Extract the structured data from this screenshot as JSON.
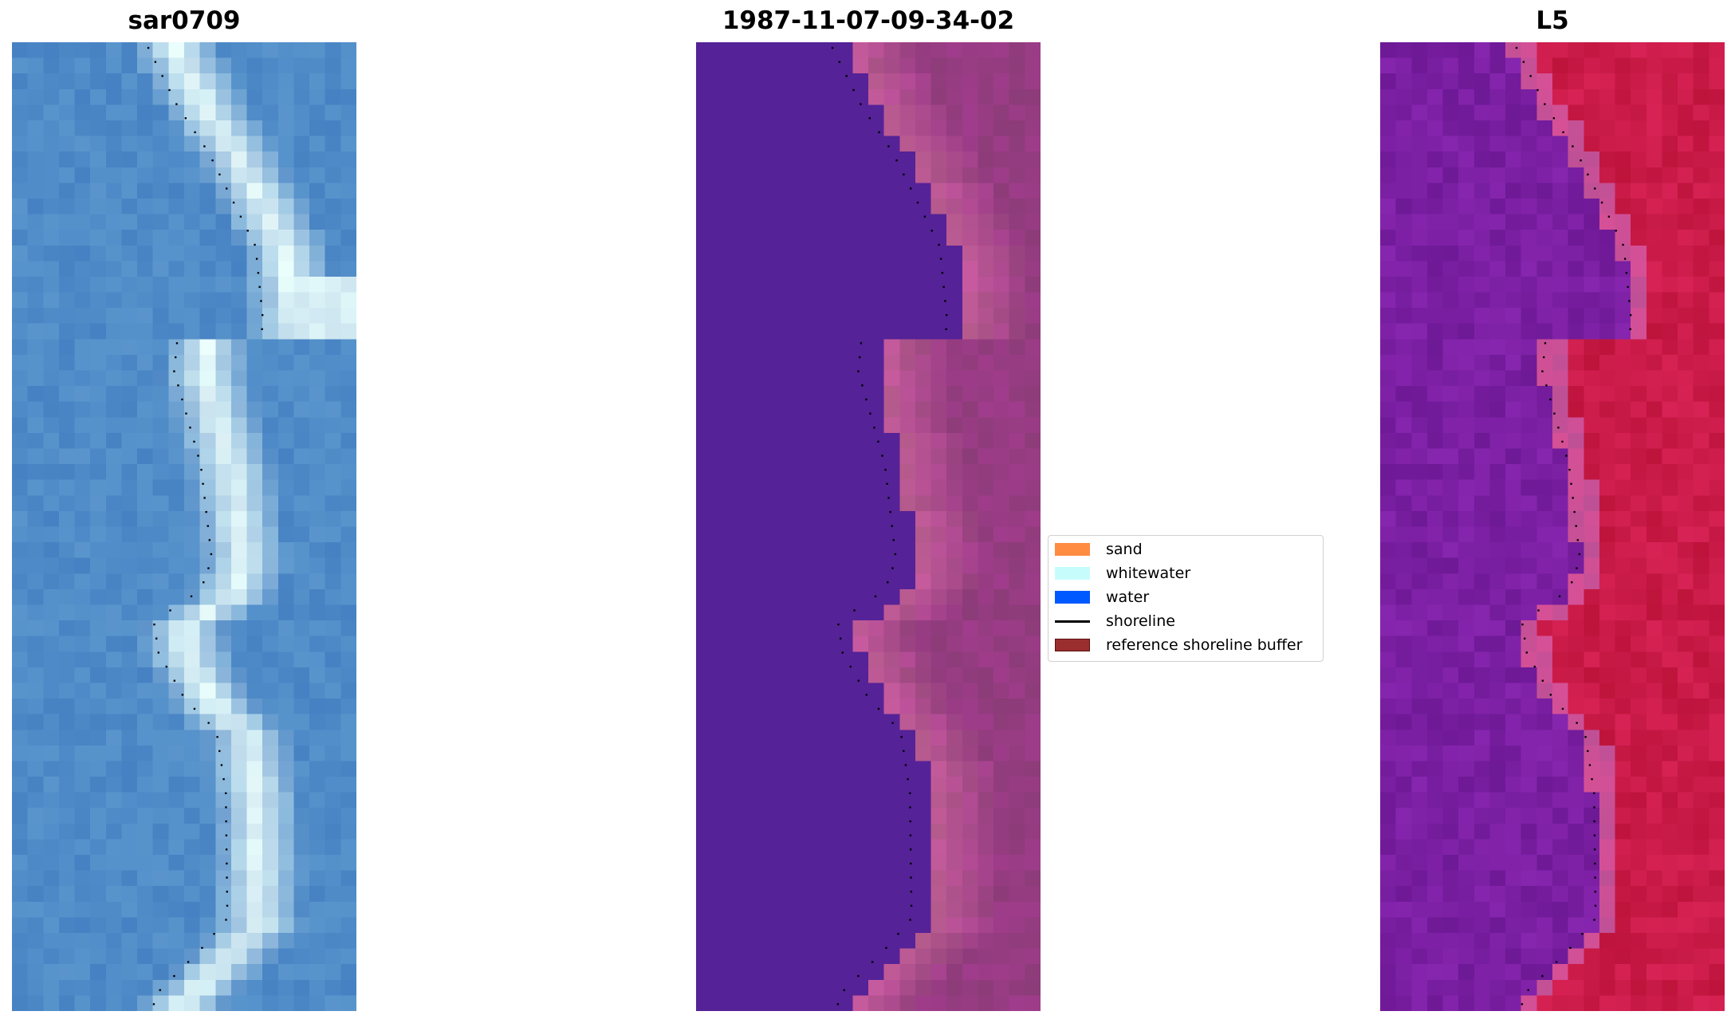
{
  "panels": [
    {
      "title": "sar0709",
      "style": "rgb"
    },
    {
      "title": "1987-11-07-09-34-02",
      "style": "classified"
    },
    {
      "title": "L5",
      "style": "index"
    }
  ],
  "legend": {
    "items": [
      {
        "label": "sand",
        "color": "#ff8c40",
        "kind": "patch"
      },
      {
        "label": "whitewater",
        "color": "#c6fcfc",
        "kind": "patch"
      },
      {
        "label": "water",
        "color": "#0059ff",
        "kind": "patch"
      },
      {
        "label": "shoreline",
        "color": "#000000",
        "kind": "line"
      },
      {
        "label": "reference shoreline buffer",
        "color": "#9a2e2e",
        "kind": "patch"
      }
    ]
  }
}
